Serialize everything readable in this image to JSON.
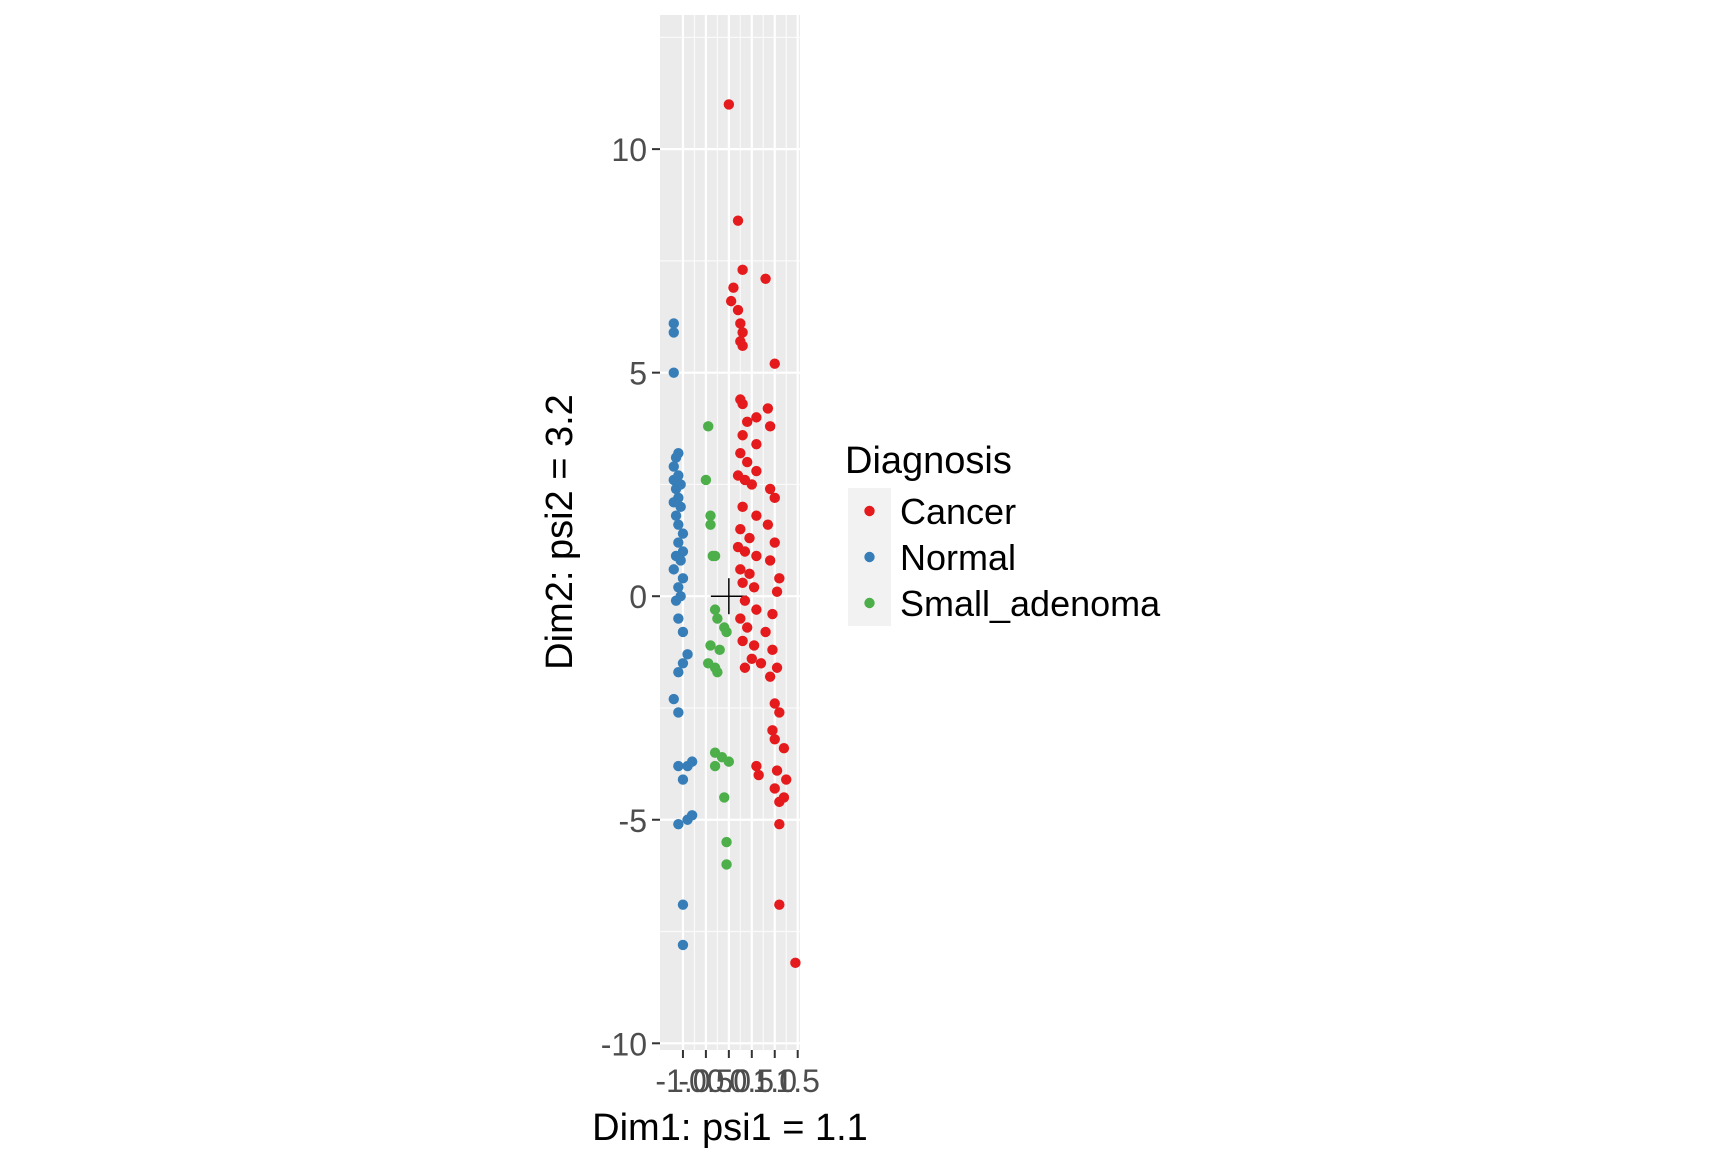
{
  "chart_data": {
    "type": "scatter",
    "title": "",
    "xlabel": "Dim1: psi1 = 1.1",
    "ylabel": "Dim2: psi2 = 3.2",
    "xlim": [
      -1.5,
      1.55
    ],
    "ylim": [
      -10.15,
      13.0
    ],
    "x_ticks": [
      -1.0,
      -0.5,
      0.0,
      0.5,
      1.0,
      1.5
    ],
    "x_tick_labels": [
      "-1.0",
      "-0.5",
      "0.0",
      "0.5",
      "1.0",
      "1.5"
    ],
    "y_ticks": [
      -10,
      -5,
      0,
      5,
      10
    ],
    "y_tick_labels": [
      "-10",
      "-5",
      "0",
      "5",
      "10"
    ],
    "grid": true,
    "origin_marker": "cross",
    "legend": {
      "title": "Diagnosis",
      "position": "right"
    },
    "series": [
      {
        "name": "Cancer",
        "color": "#E41A1C",
        "points": [
          [
            0.0,
            11.0
          ],
          [
            0.2,
            8.4
          ],
          [
            0.3,
            7.3
          ],
          [
            0.8,
            7.1
          ],
          [
            0.1,
            6.9
          ],
          [
            0.05,
            6.6
          ],
          [
            0.2,
            6.4
          ],
          [
            0.25,
            6.1
          ],
          [
            0.3,
            5.9
          ],
          [
            0.25,
            5.7
          ],
          [
            0.3,
            5.6
          ],
          [
            1.0,
            5.2
          ],
          [
            0.25,
            4.4
          ],
          [
            0.3,
            4.3
          ],
          [
            0.85,
            4.2
          ],
          [
            0.6,
            4.0
          ],
          [
            0.4,
            3.9
          ],
          [
            0.9,
            3.8
          ],
          [
            0.3,
            3.6
          ],
          [
            0.6,
            3.4
          ],
          [
            0.25,
            3.2
          ],
          [
            0.4,
            3.0
          ],
          [
            0.6,
            2.8
          ],
          [
            0.2,
            2.7
          ],
          [
            0.35,
            2.6
          ],
          [
            0.5,
            2.5
          ],
          [
            0.9,
            2.4
          ],
          [
            1.0,
            2.2
          ],
          [
            0.3,
            2.0
          ],
          [
            0.6,
            1.8
          ],
          [
            0.85,
            1.6
          ],
          [
            0.25,
            1.5
          ],
          [
            0.45,
            1.3
          ],
          [
            1.0,
            1.2
          ],
          [
            0.2,
            1.1
          ],
          [
            0.35,
            1.0
          ],
          [
            0.6,
            0.9
          ],
          [
            0.9,
            0.8
          ],
          [
            0.25,
            0.6
          ],
          [
            0.45,
            0.5
          ],
          [
            1.1,
            0.4
          ],
          [
            0.3,
            0.3
          ],
          [
            0.55,
            0.2
          ],
          [
            1.05,
            0.1
          ],
          [
            0.35,
            -0.1
          ],
          [
            0.6,
            -0.3
          ],
          [
            0.95,
            -0.4
          ],
          [
            0.25,
            -0.5
          ],
          [
            0.4,
            -0.7
          ],
          [
            0.8,
            -0.8
          ],
          [
            0.3,
            -1.0
          ],
          [
            0.55,
            -1.1
          ],
          [
            0.95,
            -1.2
          ],
          [
            0.5,
            -1.4
          ],
          [
            0.7,
            -1.5
          ],
          [
            0.35,
            -1.6
          ],
          [
            1.05,
            -1.6
          ],
          [
            0.9,
            -1.8
          ],
          [
            1.0,
            -2.4
          ],
          [
            1.1,
            -2.6
          ],
          [
            0.95,
            -3.0
          ],
          [
            1.0,
            -3.2
          ],
          [
            1.2,
            -3.4
          ],
          [
            0.6,
            -3.8
          ],
          [
            1.05,
            -3.9
          ],
          [
            0.65,
            -4.0
          ],
          [
            1.25,
            -4.1
          ],
          [
            1.0,
            -4.3
          ],
          [
            1.2,
            -4.5
          ],
          [
            1.1,
            -4.6
          ],
          [
            1.1,
            -5.1
          ],
          [
            1.1,
            -6.9
          ],
          [
            1.45,
            -8.2
          ]
        ]
      },
      {
        "name": "Normal",
        "color": "#377EB8",
        "points": [
          [
            -1.2,
            6.1
          ],
          [
            -1.2,
            5.9
          ],
          [
            -1.2,
            5.0
          ],
          [
            -1.1,
            3.2
          ],
          [
            -1.15,
            3.1
          ],
          [
            -1.2,
            2.9
          ],
          [
            -1.1,
            2.7
          ],
          [
            -1.2,
            2.6
          ],
          [
            -1.05,
            2.5
          ],
          [
            -1.15,
            2.4
          ],
          [
            -1.1,
            2.2
          ],
          [
            -1.2,
            2.1
          ],
          [
            -1.05,
            2.0
          ],
          [
            -1.15,
            1.8
          ],
          [
            -1.1,
            1.6
          ],
          [
            -1.0,
            1.4
          ],
          [
            -1.1,
            1.2
          ],
          [
            -1.0,
            1.0
          ],
          [
            -1.15,
            0.9
          ],
          [
            -1.05,
            0.8
          ],
          [
            -1.2,
            0.6
          ],
          [
            -1.0,
            0.4
          ],
          [
            -1.1,
            0.2
          ],
          [
            -1.05,
            0.0
          ],
          [
            -1.15,
            -0.1
          ],
          [
            -1.1,
            -0.5
          ],
          [
            -1.0,
            -0.8
          ],
          [
            -0.9,
            -1.3
          ],
          [
            -1.0,
            -1.5
          ],
          [
            -1.1,
            -1.7
          ],
          [
            -1.2,
            -2.3
          ],
          [
            -1.1,
            -2.6
          ],
          [
            -0.8,
            -3.7
          ],
          [
            -0.9,
            -3.8
          ],
          [
            -1.1,
            -3.8
          ],
          [
            -1.0,
            -4.1
          ],
          [
            -0.8,
            -4.9
          ],
          [
            -0.9,
            -5.0
          ],
          [
            -1.1,
            -5.1
          ],
          [
            -1.0,
            -6.9
          ],
          [
            -1.0,
            -7.8
          ]
        ]
      },
      {
        "name": "Small_adenoma",
        "color": "#4DAF4A",
        "points": [
          [
            -0.45,
            3.8
          ],
          [
            -0.5,
            2.6
          ],
          [
            -0.4,
            1.8
          ],
          [
            -0.4,
            1.6
          ],
          [
            -0.35,
            0.9
          ],
          [
            -0.3,
            0.9
          ],
          [
            -0.3,
            -0.3
          ],
          [
            -0.25,
            -0.5
          ],
          [
            -0.1,
            -0.7
          ],
          [
            -0.05,
            -0.8
          ],
          [
            -0.4,
            -1.1
          ],
          [
            -0.2,
            -1.2
          ],
          [
            -0.45,
            -1.5
          ],
          [
            -0.3,
            -1.6
          ],
          [
            -0.25,
            -1.7
          ],
          [
            -0.3,
            -3.5
          ],
          [
            -0.15,
            -3.6
          ],
          [
            0.0,
            -3.7
          ],
          [
            -0.3,
            -3.8
          ],
          [
            -0.1,
            -4.5
          ],
          [
            -0.05,
            -5.5
          ],
          [
            -0.05,
            -6.0
          ]
        ]
      }
    ]
  }
}
